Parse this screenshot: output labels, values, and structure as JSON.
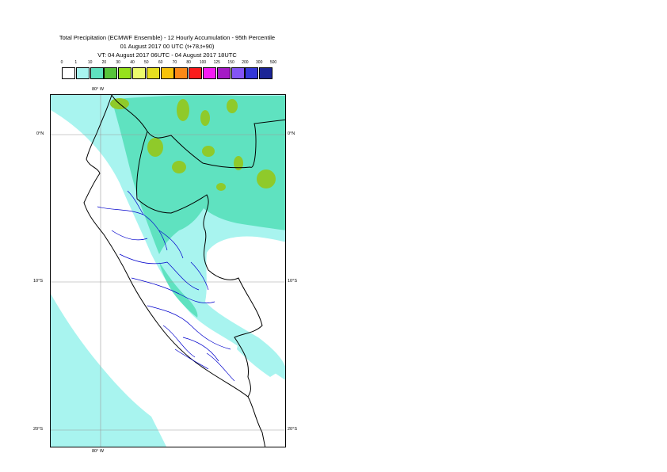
{
  "header": {
    "title": "Total Precipitation (ECMWF Ensemble) - 12 Hourly Accumulation - 95th Percentile",
    "base_time": "01 August 2017 00 UTC (t+78,t+90)",
    "valid_time": "VT: 04 August 2017 06UTC - 04 August 2017 18UTC"
  },
  "legend": {
    "values": [
      "0",
      "1",
      "10",
      "20",
      "30",
      "40",
      "50",
      "60",
      "70",
      "80",
      "100",
      "125",
      "150",
      "200",
      "300",
      "500"
    ],
    "colors": [
      "#ffffff",
      "#a8f4ef",
      "#5fe2c0",
      "#58c43a",
      "#96e11b",
      "#ecfb6c",
      "#e7df1f",
      "#f7c20b",
      "#fb8918",
      "#fb1b1b",
      "#f51bf5",
      "#a51ac6",
      "#8455f5",
      "#3437d8",
      "#1b2496"
    ]
  },
  "map": {
    "lon_label": "80° W",
    "lat_labels": [
      "0°N",
      "10°S",
      "20°S"
    ],
    "colors": {
      "light": "#a8f4ef",
      "medium": "#5fe2c0",
      "heavy": "#8fca2a",
      "grid": "#9a9a9a",
      "coast": "#000000",
      "admin": "#0000cc"
    }
  }
}
